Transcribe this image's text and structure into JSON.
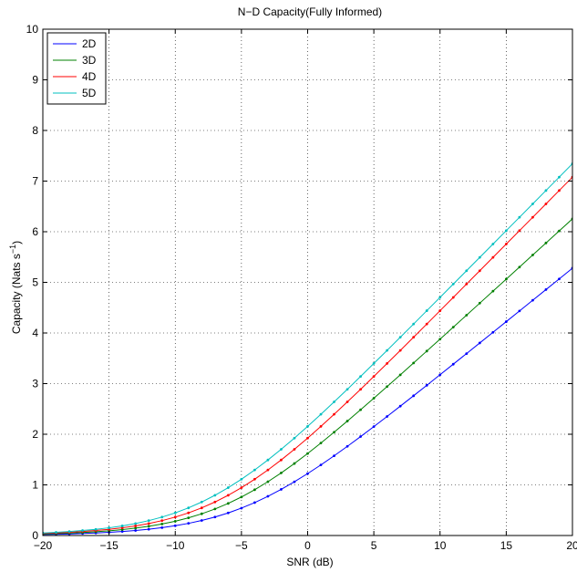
{
  "chart_data": {
    "type": "line",
    "title": "N−D Capacity(Fully Informed)",
    "xlabel": "SNR (dB)",
    "ylabel": "Capacity (Nats s",
    "ylabel_superscript": "−1",
    "ylabel_close": ")",
    "xlim": [
      -20,
      20
    ],
    "ylim": [
      0,
      10
    ],
    "xticks": [
      -20,
      -15,
      -10,
      -5,
      0,
      5,
      10,
      15,
      20
    ],
    "xtick_labels": [
      "−20",
      "−15",
      "−10",
      "−5",
      "0",
      "5",
      "10",
      "15",
      "20"
    ],
    "yticks": [
      0,
      1,
      2,
      3,
      4,
      5,
      6,
      7,
      8,
      9,
      10
    ],
    "ytick_labels": [
      "0",
      "1",
      "2",
      "3",
      "4",
      "5",
      "6",
      "7",
      "8",
      "9",
      "10"
    ],
    "grid": true,
    "legend_position": "top-left",
    "marker": "dot",
    "series": [
      {
        "name": "2D",
        "color": "#0000ff",
        "x": [
          -20,
          -19,
          -18,
          -17,
          -16,
          -15,
          -14,
          -13,
          -12,
          -11,
          -10,
          -9,
          -8,
          -7,
          -6,
          -5,
          -4,
          -3,
          -2,
          -1,
          0,
          1,
          2,
          3,
          4,
          5,
          6,
          7,
          8,
          9,
          10,
          11,
          12,
          13,
          14,
          15,
          16,
          17,
          18,
          19,
          20
        ],
        "y": [
          0.02,
          0.025,
          0.03,
          0.04,
          0.05,
          0.063,
          0.079,
          0.099,
          0.124,
          0.155,
          0.193,
          0.24,
          0.297,
          0.365,
          0.446,
          0.541,
          0.65,
          0.774,
          0.911,
          1.061,
          1.223,
          1.394,
          1.574,
          1.761,
          1.954,
          2.151,
          2.352,
          2.555,
          2.76,
          2.967,
          3.175,
          3.384,
          3.593,
          3.803,
          4.013,
          4.224,
          4.435,
          4.646,
          4.857,
          5.068,
          5.28
        ]
      },
      {
        "name": "3D",
        "color": "#008000",
        "x": [
          -20,
          -19,
          -18,
          -17,
          -16,
          -15,
          -14,
          -13,
          -12,
          -11,
          -10,
          -9,
          -8,
          -7,
          -6,
          -5,
          -4,
          -3,
          -2,
          -1,
          0,
          1,
          2,
          3,
          4,
          5,
          6,
          7,
          8,
          9,
          10,
          11,
          12,
          13,
          14,
          15,
          16,
          17,
          18,
          19,
          20
        ],
        "y": [
          0.03,
          0.038,
          0.047,
          0.059,
          0.074,
          0.093,
          0.116,
          0.146,
          0.182,
          0.227,
          0.282,
          0.349,
          0.429,
          0.524,
          0.634,
          0.761,
          0.904,
          1.063,
          1.236,
          1.422,
          1.619,
          1.826,
          2.04,
          2.26,
          2.484,
          2.712,
          2.942,
          3.174,
          3.408,
          3.643,
          3.879,
          4.115,
          4.352,
          4.589,
          4.827,
          5.064,
          5.302,
          5.54,
          5.778,
          6.016,
          6.254
        ]
      },
      {
        "name": "4D",
        "color": "#ff0000",
        "x": [
          -20,
          -19,
          -18,
          -17,
          -16,
          -15,
          -14,
          -13,
          -12,
          -11,
          -10,
          -9,
          -8,
          -7,
          -6,
          -5,
          -4,
          -3,
          -2,
          -1,
          0,
          1,
          2,
          3,
          4,
          5,
          6,
          7,
          8,
          9,
          10,
          11,
          12,
          13,
          14,
          15,
          16,
          17,
          18,
          19,
          20
        ],
        "y": [
          0.04,
          0.05,
          0.062,
          0.078,
          0.098,
          0.122,
          0.152,
          0.19,
          0.237,
          0.294,
          0.364,
          0.447,
          0.546,
          0.662,
          0.795,
          0.945,
          1.112,
          1.295,
          1.492,
          1.703,
          1.924,
          2.155,
          2.394,
          2.639,
          2.888,
          3.142,
          3.398,
          3.656,
          3.916,
          4.177,
          4.44,
          4.703,
          4.966,
          5.229,
          5.493,
          5.757,
          6.021,
          6.285,
          6.549,
          6.814,
          7.078
        ]
      },
      {
        "name": "5D",
        "color": "#00bfbf",
        "x": [
          -20,
          -19,
          -18,
          -17,
          -16,
          -15,
          -14,
          -13,
          -12,
          -11,
          -10,
          -9,
          -8,
          -7,
          -6,
          -5,
          -4,
          -3,
          -2,
          -1,
          0,
          1,
          2,
          3,
          4,
          5,
          6,
          7,
          8,
          9,
          10,
          11,
          12,
          13,
          14,
          15,
          16,
          17,
          18,
          19,
          20
        ],
        "y": [
          0.05,
          0.062,
          0.078,
          0.098,
          0.122,
          0.152,
          0.19,
          0.237,
          0.294,
          0.364,
          0.447,
          0.546,
          0.662,
          0.795,
          0.945,
          1.112,
          1.295,
          1.492,
          1.703,
          1.924,
          2.155,
          2.394,
          2.639,
          2.888,
          3.142,
          3.398,
          3.656,
          3.916,
          4.177,
          4.44,
          4.703,
          4.966,
          5.229,
          5.493,
          5.757,
          6.021,
          6.285,
          6.549,
          6.814,
          7.078,
          7.343
        ]
      }
    ]
  }
}
